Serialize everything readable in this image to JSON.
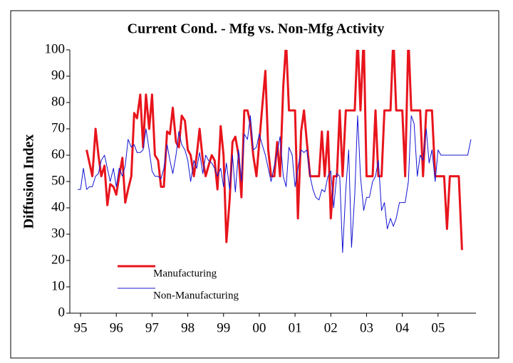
{
  "chart_data": {
    "type": "line",
    "title": "Current Cond. - Mfg vs. Non-Mfg Activity",
    "y_label": "Diffusion Index",
    "x": [
      1994.92,
      1995.0,
      1995.08,
      1995.17,
      1995.25,
      1995.33,
      1995.42,
      1995.5,
      1995.58,
      1995.67,
      1995.75,
      1995.83,
      1995.92,
      1996.0,
      1996.08,
      1996.17,
      1996.25,
      1996.33,
      1996.42,
      1996.5,
      1996.58,
      1996.67,
      1996.75,
      1996.83,
      1996.92,
      1997.0,
      1997.08,
      1997.17,
      1997.25,
      1997.33,
      1997.42,
      1997.5,
      1997.58,
      1997.67,
      1997.75,
      1997.83,
      1997.92,
      1998.0,
      1998.08,
      1998.17,
      1998.25,
      1998.33,
      1998.42,
      1998.5,
      1998.58,
      1998.67,
      1998.75,
      1998.83,
      1998.92,
      1999.0,
      1999.08,
      1999.17,
      1999.25,
      1999.33,
      1999.42,
      1999.5,
      1999.58,
      1999.67,
      1999.75,
      1999.83,
      1999.92,
      2000.0,
      2000.08,
      2000.17,
      2000.25,
      2000.33,
      2000.42,
      2000.5,
      2000.58,
      2000.67,
      2000.75,
      2000.83,
      2000.92,
      2001.0,
      2001.08,
      2001.17,
      2001.25,
      2001.33,
      2001.42,
      2001.5,
      2001.58,
      2001.67,
      2001.75,
      2001.83,
      2001.92,
      2002.0,
      2002.08,
      2002.17,
      2002.25,
      2002.33,
      2002.42,
      2002.5,
      2002.58,
      2002.67,
      2002.75,
      2002.83,
      2002.92,
      2003.0,
      2003.08,
      2003.17,
      2003.25,
      2003.33,
      2003.42,
      2003.5,
      2003.58,
      2003.67,
      2003.75,
      2003.83,
      2003.92,
      2004.0,
      2004.08,
      2004.17,
      2004.25,
      2004.33,
      2004.42,
      2004.5,
      2004.58,
      2004.67,
      2004.75,
      2004.83,
      2004.92,
      2005.0,
      2005.08,
      2005.17,
      2005.25,
      2005.33,
      2005.42,
      2005.5,
      2005.58,
      2005.67,
      2005.75,
      2005.83,
      2005.92
    ],
    "series": [
      {
        "name": "Manufacturing",
        "color": "#e8141c",
        "width": 3,
        "values": [
          null,
          null,
          null,
          62,
          57,
          52,
          70,
          60,
          52,
          56,
          41,
          49,
          48,
          45,
          52,
          59,
          42,
          47,
          52,
          76,
          74,
          83,
          63,
          83,
          70,
          83,
          60,
          58,
          48,
          48,
          69,
          68,
          78,
          65,
          63,
          75,
          73,
          62,
          60,
          52,
          60,
          70,
          58,
          52,
          56,
          60,
          58,
          47,
          71,
          60,
          27,
          43,
          65,
          67,
          60,
          44,
          77,
          77,
          72,
          60,
          52,
          65,
          78,
          92,
          62,
          52,
          52,
          65,
          52,
          86,
          103,
          77,
          77,
          77,
          36,
          69,
          77,
          65,
          52,
          52,
          52,
          52,
          69,
          52,
          69,
          36,
          52,
          52,
          77,
          52,
          77,
          77,
          77,
          77,
          105,
          77,
          105,
          52,
          52,
          52,
          77,
          52,
          52,
          77,
          77,
          77,
          105,
          77,
          77,
          77,
          52,
          105,
          77,
          77,
          77,
          77,
          52,
          77,
          77,
          77,
          52,
          52,
          52,
          52,
          32,
          52,
          52,
          52,
          52,
          24,
          null,
          null,
          null
        ]
      },
      {
        "name": "Non-Manufacturing",
        "color": "#1414d2",
        "width": 1,
        "values": [
          47,
          47,
          55,
          47,
          48,
          48,
          52,
          53,
          58,
          60,
          55,
          50,
          55,
          48,
          55,
          52,
          56,
          66,
          63,
          64,
          61,
          61,
          62,
          70,
          62,
          54,
          52,
          52,
          51,
          55,
          64,
          58,
          53,
          60,
          69,
          64,
          62,
          58,
          50,
          58,
          55,
          61,
          53,
          60,
          58,
          57,
          55,
          52,
          55,
          48,
          57,
          47,
          60,
          46,
          62,
          50,
          68,
          66,
          75,
          62,
          63,
          68,
          64,
          60,
          55,
          50,
          56,
          61,
          67,
          52,
          48,
          63,
          60,
          48,
          55,
          62,
          61,
          62,
          52,
          47,
          44,
          43,
          47,
          46,
          52,
          54,
          40,
          53,
          52,
          23,
          47,
          62,
          25,
          45,
          75,
          52,
          39,
          44,
          44,
          50,
          52,
          58,
          39,
          42,
          32,
          36,
          33,
          36,
          42,
          42,
          42,
          50,
          75,
          72,
          52,
          60,
          58,
          70,
          57,
          62,
          50,
          62,
          60,
          60,
          60,
          60,
          60,
          60,
          60,
          60,
          60,
          60,
          66
        ]
      }
    ],
    "xlim": [
      1994.7,
      2006.06
    ],
    "xticks": [
      {
        "value": 1995,
        "label": "95"
      },
      {
        "value": 1996,
        "label": "96"
      },
      {
        "value": 1997,
        "label": "97"
      },
      {
        "value": 1998,
        "label": "98"
      },
      {
        "value": 1999,
        "label": "99"
      },
      {
        "value": 2000,
        "label": "00"
      },
      {
        "value": 2001,
        "label": "01"
      },
      {
        "value": 2002,
        "label": "02"
      },
      {
        "value": 2003,
        "label": "03"
      },
      {
        "value": 2004,
        "label": "04"
      },
      {
        "value": 2005,
        "label": "05"
      }
    ],
    "ylim": [
      0,
      100
    ],
    "yticks": [
      0,
      10,
      20,
      30,
      40,
      50,
      60,
      70,
      80,
      90,
      100
    ],
    "grid": false,
    "legend": "lower left"
  }
}
